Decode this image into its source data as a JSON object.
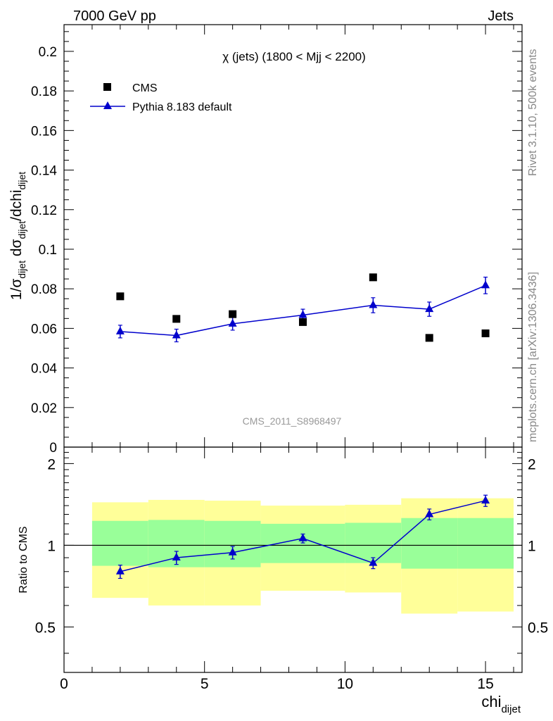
{
  "header": {
    "left": "7000 GeV pp",
    "right": "Jets"
  },
  "side_labels": {
    "rivet": "Rivet 3.1.10,  500k events",
    "mcplots": "mcplots.cern.ch [arXiv:1306.3436]"
  },
  "chart_data": [
    {
      "type": "scatter",
      "title": "χ (jets) (1800 < Mjj < 2200)",
      "watermark": "CMS_2011_S8968497",
      "ylabel_parts": [
        "1/σ",
        "dijet",
        " dσ",
        "dijet",
        "/dchi",
        "dijet"
      ],
      "ylim": [
        0,
        0.2135
      ],
      "yticks": [
        "0",
        "0.02",
        "0.04",
        "0.06",
        "0.08",
        "0.1",
        "0.12",
        "0.14",
        "0.16",
        "0.18",
        "0.2"
      ],
      "ytick_values": [
        0,
        0.02,
        0.04,
        0.06,
        0.08,
        0.1,
        0.12,
        0.14,
        0.16,
        0.18,
        0.2
      ],
      "legend_position": "top-left",
      "series": [
        {
          "name": "CMS",
          "marker": "square",
          "color": "#000000",
          "points": [
            {
              "x": 2,
              "y": 0.0762
            },
            {
              "x": 4,
              "y": 0.0648
            },
            {
              "x": 6,
              "y": 0.0672
            },
            {
              "x": 8.5,
              "y": 0.0632
            },
            {
              "x": 11,
              "y": 0.0858
            },
            {
              "x": 13,
              "y": 0.0552
            },
            {
              "x": 15,
              "y": 0.0575
            }
          ]
        },
        {
          "name": "Pythia 8.183 default",
          "marker": "triangle",
          "color": "#0000cc",
          "points": [
            {
              "x": 2,
              "y": 0.0584,
              "err": 0.0032
            },
            {
              "x": 4,
              "y": 0.0564,
              "err": 0.0032
            },
            {
              "x": 6,
              "y": 0.0623,
              "err": 0.0032
            },
            {
              "x": 8.5,
              "y": 0.0667,
              "err": 0.003
            },
            {
              "x": 11,
              "y": 0.0717,
              "err": 0.0038
            },
            {
              "x": 13,
              "y": 0.0697,
              "err": 0.0036
            },
            {
              "x": 15,
              "y": 0.0817,
              "err": 0.0042
            }
          ]
        }
      ]
    },
    {
      "type": "scatter",
      "ylabel": "Ratio to CMS",
      "xlabel": "chi",
      "xlabel_sub": "dijet",
      "xlim": [
        0,
        16.3
      ],
      "xticks": [
        "0",
        "5",
        "10",
        "15"
      ],
      "xtick_values": [
        0,
        5,
        10,
        15
      ],
      "ylim": [
        0.34,
        2.3
      ],
      "yscale": "log",
      "yticks": [
        "0.5",
        "1",
        "2"
      ],
      "ytick_values": [
        0.5,
        1,
        2
      ],
      "reference_line": 1,
      "bands": {
        "outer_color": "#ffff99",
        "inner_color": "#99ff99",
        "bins": [
          {
            "x0": 1,
            "x1": 3,
            "outer": [
              0.64,
              1.44
            ],
            "inner": [
              0.84,
              1.23
            ]
          },
          {
            "x0": 3,
            "x1": 5,
            "outer": [
              0.6,
              1.47
            ],
            "inner": [
              0.83,
              1.24
            ]
          },
          {
            "x0": 5,
            "x1": 7,
            "outer": [
              0.6,
              1.46
            ],
            "inner": [
              0.83,
              1.23
            ]
          },
          {
            "x0": 7,
            "x1": 10,
            "outer": [
              0.68,
              1.4
            ],
            "inner": [
              0.86,
              1.2
            ]
          },
          {
            "x0": 10,
            "x1": 12,
            "outer": [
              0.67,
              1.41
            ],
            "inner": [
              0.86,
              1.21
            ]
          },
          {
            "x0": 12,
            "x1": 14,
            "outer": [
              0.56,
              1.49
            ],
            "inner": [
              0.82,
              1.26
            ]
          },
          {
            "x0": 14,
            "x1": 16,
            "outer": [
              0.57,
              1.49
            ],
            "inner": [
              0.82,
              1.26
            ]
          }
        ]
      },
      "series": [
        {
          "name": "Pythia 8.183 default",
          "marker": "triangle",
          "color": "#0000cc",
          "points": [
            {
              "x": 2,
              "y": 0.8,
              "err": 0.045
            },
            {
              "x": 4,
              "y": 0.9,
              "err": 0.05
            },
            {
              "x": 6,
              "y": 0.94,
              "err": 0.05
            },
            {
              "x": 8.5,
              "y": 1.06,
              "err": 0.04
            },
            {
              "x": 11,
              "y": 0.86,
              "err": 0.04
            },
            {
              "x": 13,
              "y": 1.3,
              "err": 0.06
            },
            {
              "x": 15,
              "y": 1.46,
              "err": 0.07
            }
          ]
        }
      ]
    }
  ]
}
